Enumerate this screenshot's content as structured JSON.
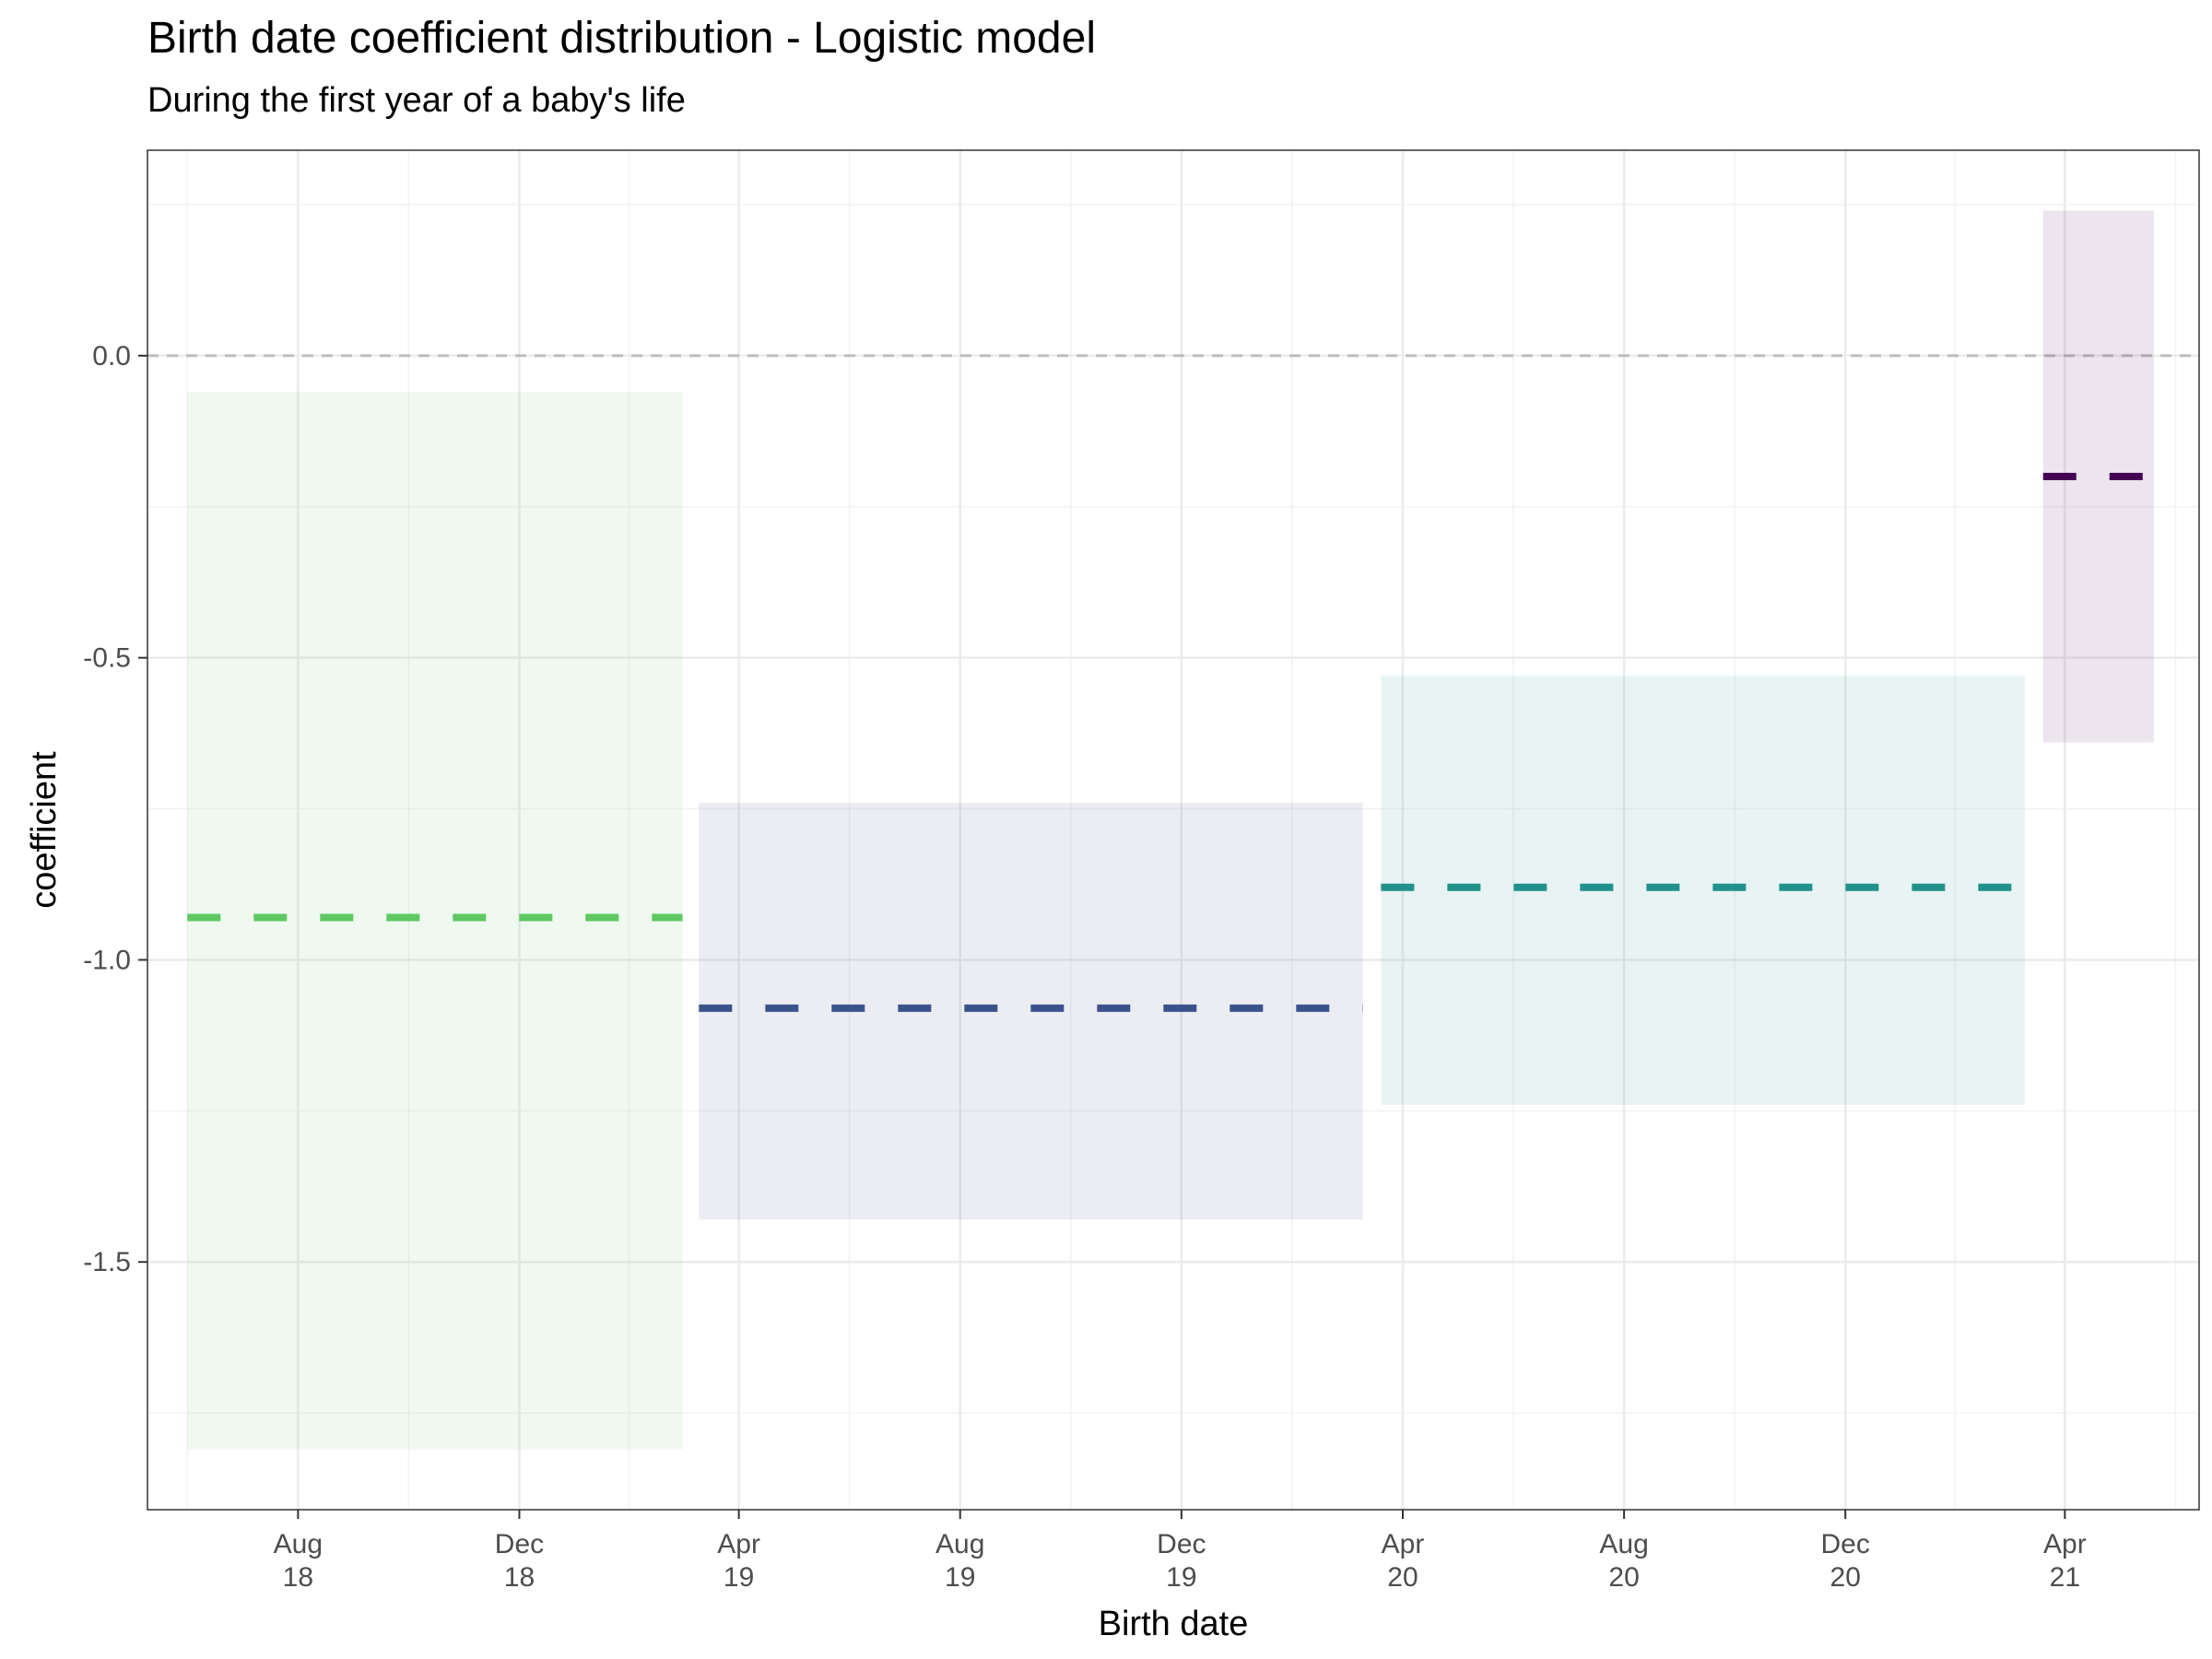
{
  "chart_data": {
    "type": "line",
    "title": "Birth date coefficient distribution - Logistic model",
    "subtitle": "During the first year of a baby's life",
    "xlabel": "Birth date",
    "ylabel": "coefficient",
    "x_axis_type": "date",
    "xlim": [
      "2018-05-10",
      "2021-06-14"
    ],
    "ylim": [
      -1.91,
      0.34
    ],
    "grid": true,
    "legend": "none",
    "x_ticks": [
      {
        "date": "2018-08-01",
        "label": [
          "Aug",
          "18"
        ]
      },
      {
        "date": "2018-12-01",
        "label": [
          "Dec",
          "18"
        ]
      },
      {
        "date": "2019-04-01",
        "label": [
          "Apr",
          "19"
        ]
      },
      {
        "date": "2019-08-01",
        "label": [
          "Aug",
          "19"
        ]
      },
      {
        "date": "2019-12-01",
        "label": [
          "Dec",
          "19"
        ]
      },
      {
        "date": "2020-04-01",
        "label": [
          "Apr",
          "20"
        ]
      },
      {
        "date": "2020-08-01",
        "label": [
          "Aug",
          "20"
        ]
      },
      {
        "date": "2020-12-01",
        "label": [
          "Dec",
          "20"
        ]
      },
      {
        "date": "2021-04-01",
        "label": [
          "Apr",
          "21"
        ]
      }
    ],
    "y_ticks": [
      {
        "value": 0.0,
        "label": "0.0"
      },
      {
        "value": -0.5,
        "label": "-0.5"
      },
      {
        "value": -1.0,
        "label": "-1.0"
      },
      {
        "value": -1.5,
        "label": "-1.5"
      }
    ],
    "reference_line": {
      "y": 0.0,
      "style": "dashed",
      "color": "#bdbdbd"
    },
    "series": [
      {
        "x_start": "2018-06-01",
        "x_end": "2019-03-01",
        "estimate": -0.93,
        "lower": -1.81,
        "upper": -0.06,
        "color": "#5ec962"
      },
      {
        "x_start": "2019-03-10",
        "x_end": "2020-03-10",
        "estimate": -1.08,
        "lower": -1.43,
        "upper": -0.74,
        "color": "#3b528b"
      },
      {
        "x_start": "2020-03-20",
        "x_end": "2021-03-10",
        "estimate": -0.88,
        "lower": -1.24,
        "upper": -0.53,
        "color": "#21918c"
      },
      {
        "x_start": "2021-03-20",
        "x_end": "2021-05-20",
        "estimate": -0.2,
        "lower": -0.64,
        "upper": 0.24,
        "color": "#440154"
      }
    ]
  }
}
